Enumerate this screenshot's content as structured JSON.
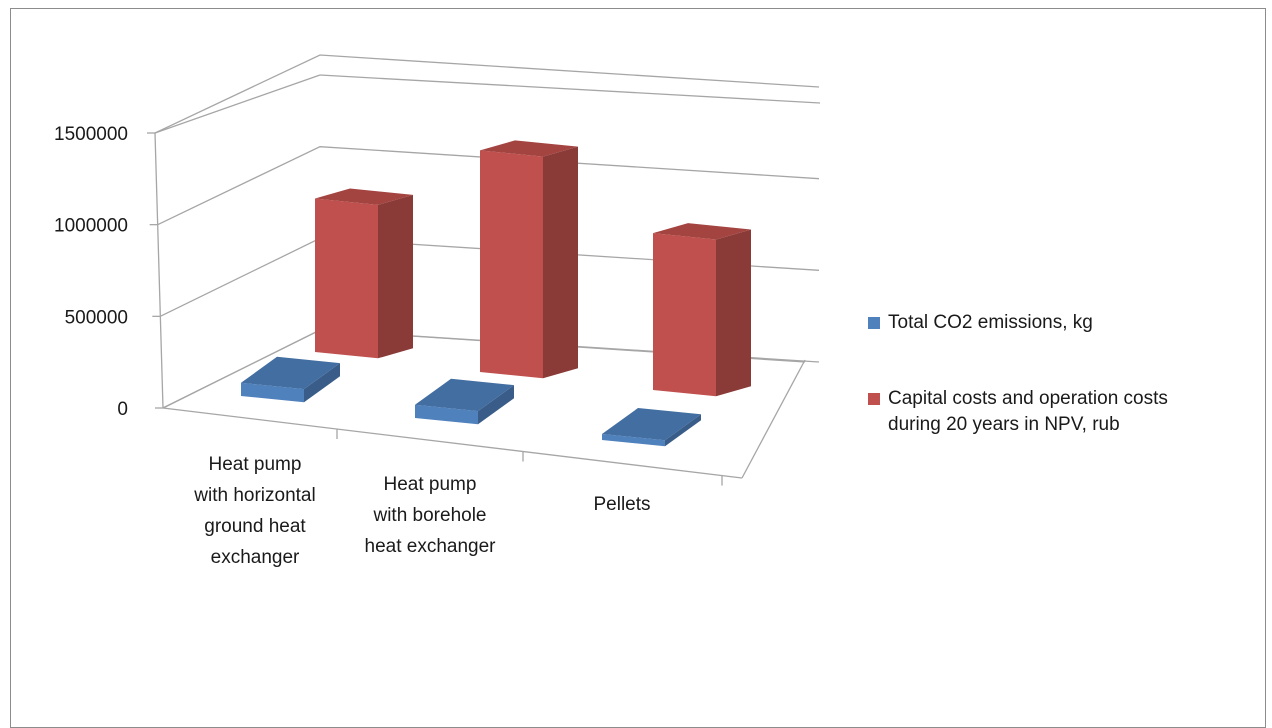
{
  "chart_data": {
    "type": "bar",
    "categories": [
      [
        "Heat pump",
        "with horizontal",
        "ground heat",
        "exchanger"
      ],
      [
        "Heat pump",
        "with borehole",
        "heat exchanger"
      ],
      [
        "Pellets"
      ]
    ],
    "series": [
      {
        "name": "Total CO2 emissions, kg",
        "values": [
          60000,
          60000,
          10000
        ],
        "color": "#4F81BD"
      },
      {
        "name": [
          "Capital costs and operation  costs",
          "during 20 years in NPV, rub"
        ],
        "values": [
          900000,
          1300000,
          920000
        ],
        "color": "#C0504D"
      }
    ],
    "y_ticks": [
      "0",
      "500000",
      "1000000",
      "1500000"
    ],
    "ylim": [
      0,
      1500000
    ],
    "legend_position": "right",
    "grid": true
  }
}
